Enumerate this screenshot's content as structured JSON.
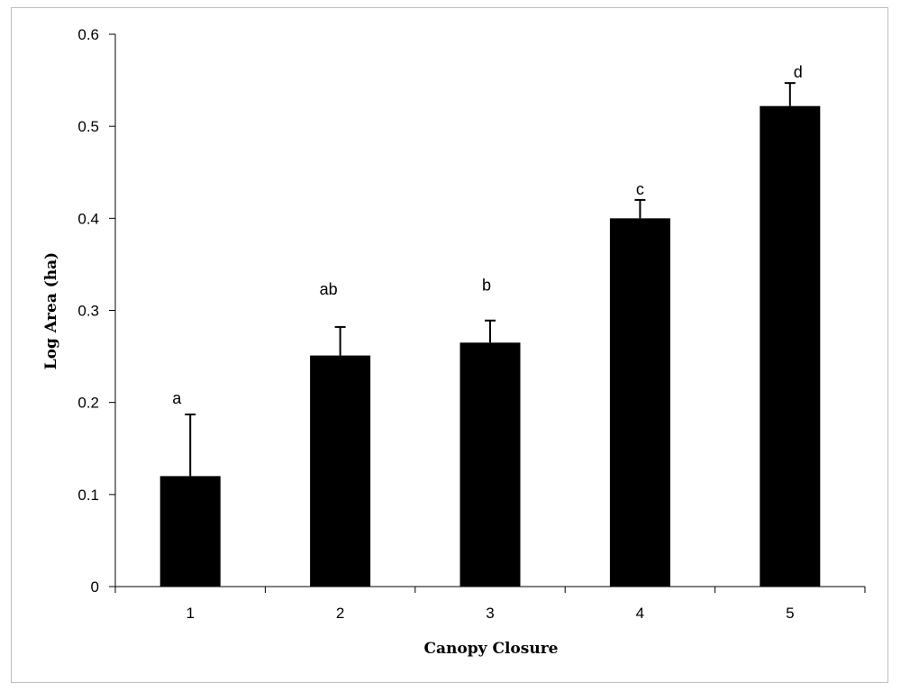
{
  "chart_data": {
    "type": "bar",
    "categories": [
      "1",
      "2",
      "3",
      "4",
      "5"
    ],
    "values": [
      0.12,
      0.251,
      0.265,
      0.4,
      0.522
    ],
    "error_upper": [
      0.067,
      0.031,
      0.024,
      0.02,
      0.025
    ],
    "significance_labels": [
      "a",
      "ab",
      "b",
      "c",
      "d"
    ],
    "xlabel": "Canopy Closure",
    "ylabel": "Log Area (ha)",
    "ylim": [
      0,
      0.6
    ],
    "yticks": [
      0,
      0.1,
      0.2,
      0.3,
      0.4,
      0.5,
      0.6
    ],
    "ytick_labels": [
      "0",
      "0.1",
      "0.2",
      "0.3",
      "0.4",
      "0.5",
      "0.6"
    ],
    "grid": false,
    "legend": "none",
    "bar_color": "#000000"
  }
}
